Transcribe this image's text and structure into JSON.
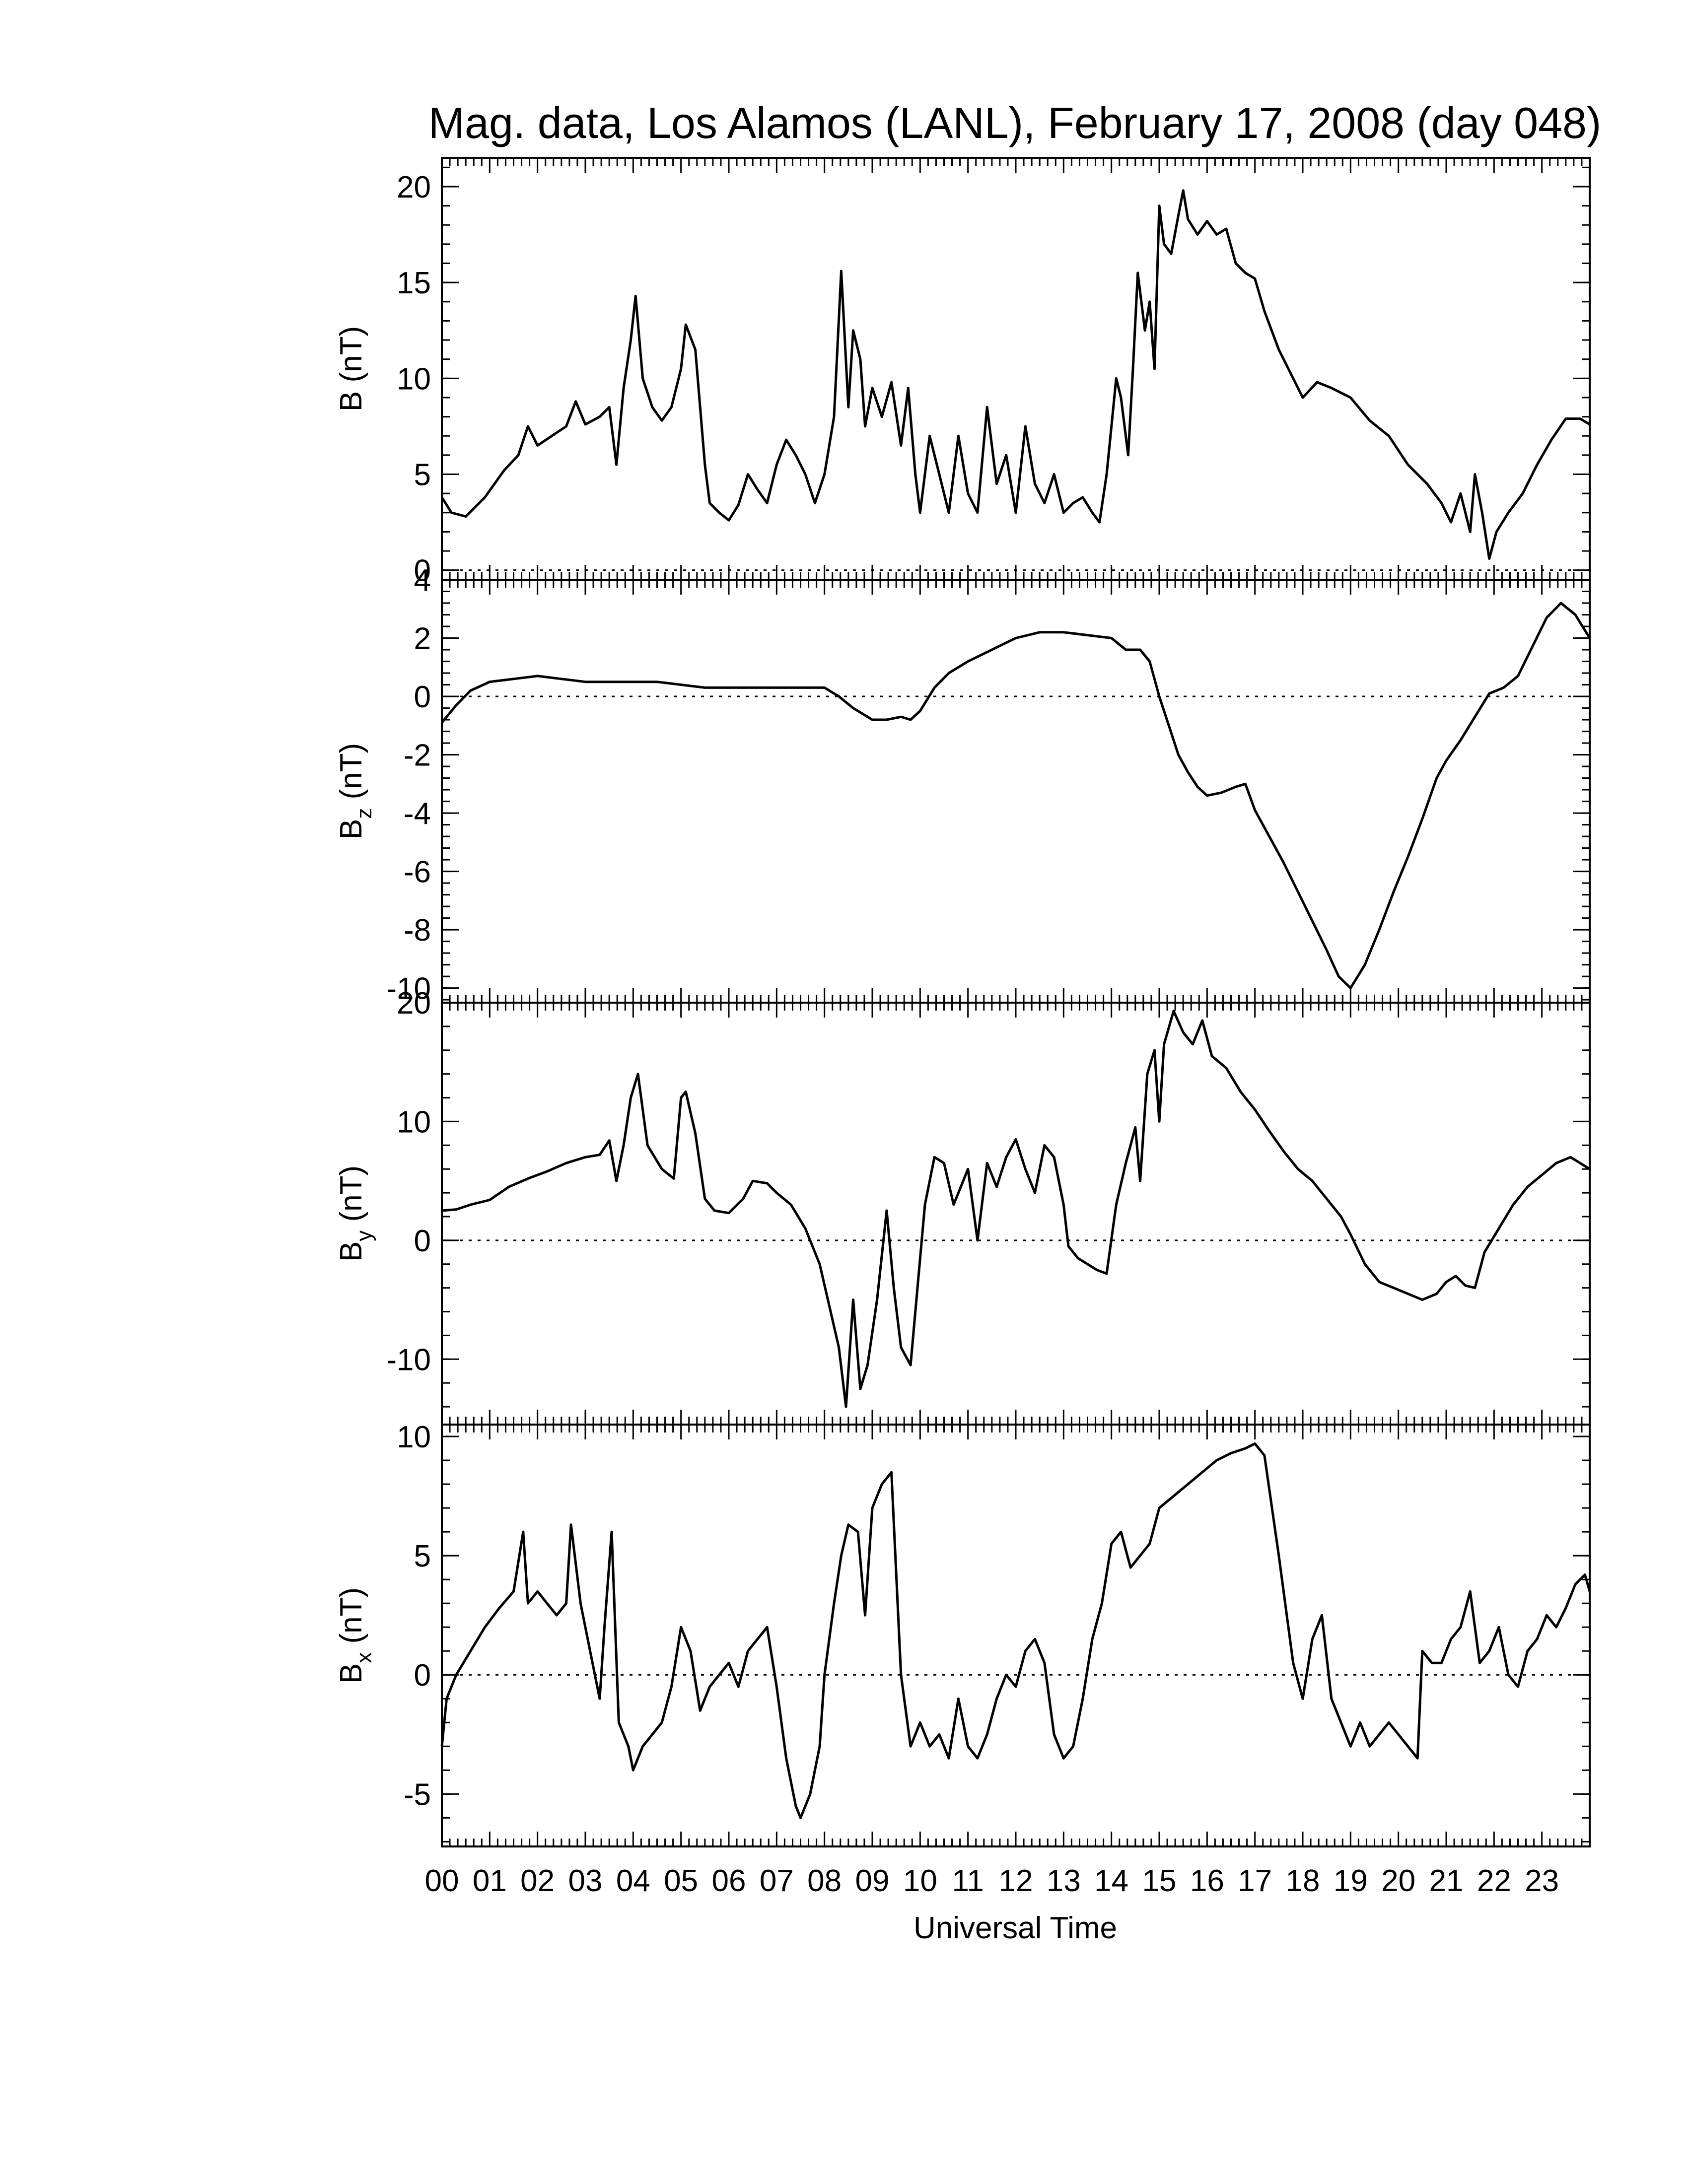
{
  "chart_data": {
    "type": "line",
    "title": "Mag. data, Los Alamos (LANL), February 17, 2008 (day 048)",
    "xlabel": "Universal Time",
    "xlim": [
      0,
      24
    ],
    "x_tick_labels": [
      "00",
      "01",
      "02",
      "03",
      "04",
      "05",
      "06",
      "07",
      "08",
      "09",
      "10",
      "11",
      "12",
      "13",
      "14",
      "15",
      "16",
      "17",
      "18",
      "19",
      "20",
      "21",
      "22",
      "23"
    ],
    "grid": false,
    "zero_line": "dotted",
    "line_color": "#000000",
    "panels": [
      {
        "key": "B",
        "ylabel_main": "B",
        "ylabel_sub": "",
        "ylabel_unit": "(nT)",
        "ylim": [
          -0.5,
          21.5
        ],
        "yticks": [
          0,
          5,
          10,
          15,
          20
        ],
        "zero_line": true,
        "series": [
          {
            "x": [
              0,
              0.2,
              0.5,
              0.9,
              1.3,
              1.6,
              1.8,
              2.0,
              2.3,
              2.6,
              2.8,
              3.0,
              3.3,
              3.5,
              3.65,
              3.8,
              3.95,
              4.05,
              4.2,
              4.4,
              4.6,
              4.8,
              5.0,
              5.1,
              5.3,
              5.5,
              5.6,
              5.8,
              6.0,
              6.2,
              6.4,
              6.6,
              6.8,
              7.0,
              7.2,
              7.4,
              7.6,
              7.8,
              8.0,
              8.2,
              8.35,
              8.5,
              8.6,
              8.75,
              8.85,
              9.0,
              9.2,
              9.4,
              9.6,
              9.75,
              9.9,
              10.0,
              10.2,
              10.4,
              10.6,
              10.8,
              11.0,
              11.2,
              11.4,
              11.6,
              11.8,
              12.0,
              12.2,
              12.4,
              12.6,
              12.8,
              13.0,
              13.2,
              13.4,
              13.6,
              13.75,
              13.9,
              14.0,
              14.1,
              14.2,
              14.35,
              14.45,
              14.55,
              14.7,
              14.8,
              14.9,
              15.0,
              15.1,
              15.25,
              15.4,
              15.5,
              15.6,
              15.8,
              16.0,
              16.2,
              16.4,
              16.6,
              16.8,
              17.0,
              17.2,
              17.5,
              17.8,
              18.0,
              18.3,
              18.6,
              19.0,
              19.4,
              19.8,
              20.2,
              20.6,
              20.9,
              21.1,
              21.3,
              21.5,
              21.6,
              21.75,
              21.9,
              22.05,
              22.3,
              22.6,
              22.9,
              23.2,
              23.5,
              23.8,
              24.0
            ],
            "y": [
              3.8,
              3.0,
              2.8,
              3.8,
              5.2,
              6.0,
              7.5,
              6.5,
              7.0,
              7.5,
              8.8,
              7.6,
              8.0,
              8.5,
              5.5,
              9.5,
              12.0,
              14.3,
              10.0,
              8.5,
              7.8,
              8.5,
              10.5,
              12.8,
              11.5,
              5.5,
              3.5,
              3.0,
              2.6,
              3.4,
              5.0,
              4.2,
              3.5,
              5.5,
              6.8,
              6.0,
              5.0,
              3.5,
              5.0,
              8.0,
              15.6,
              8.5,
              12.5,
              11.0,
              7.5,
              9.5,
              8.0,
              9.8,
              6.5,
              9.5,
              5.0,
              3.0,
              7.0,
              5.0,
              3.0,
              7.0,
              4.0,
              3.0,
              8.5,
              4.5,
              6.0,
              3.0,
              7.5,
              4.5,
              3.5,
              5.0,
              3.0,
              3.5,
              3.8,
              3.0,
              2.5,
              5.0,
              7.5,
              10.0,
              9.0,
              6.0,
              10.5,
              15.5,
              12.5,
              14.0,
              10.5,
              19.0,
              17.0,
              16.5,
              18.5,
              19.8,
              18.3,
              17.5,
              18.2,
              17.5,
              17.8,
              16.0,
              15.5,
              15.2,
              13.5,
              11.5,
              10.0,
              9.0,
              9.8,
              9.5,
              9.0,
              7.8,
              7.0,
              5.5,
              4.5,
              3.5,
              2.5,
              4.0,
              2.0,
              5.0,
              3.0,
              0.6,
              2.0,
              3.0,
              4.0,
              5.5,
              6.8,
              7.9,
              7.9,
              7.6
            ]
          }
        ]
      },
      {
        "key": "Bz",
        "ylabel_main": "B",
        "ylabel_sub": "z",
        "ylabel_unit": "(nT)",
        "ylim": [
          -10.5,
          4
        ],
        "yticks": [
          -10,
          -8,
          -6,
          -4,
          -2,
          0,
          2,
          4
        ],
        "zero_line": true,
        "series": [
          {
            "x": [
              0,
              0.3,
              0.6,
              1.0,
              1.5,
              2.0,
              2.5,
              3.0,
              3.5,
              4.0,
              4.5,
              5.0,
              5.5,
              6.0,
              6.5,
              7.0,
              7.5,
              8.0,
              8.3,
              8.6,
              9.0,
              9.3,
              9.6,
              9.8,
              10.0,
              10.3,
              10.6,
              11.0,
              11.5,
              12.0,
              12.5,
              13.0,
              13.5,
              14.0,
              14.3,
              14.6,
              14.8,
              15.0,
              15.2,
              15.4,
              15.6,
              15.8,
              16.0,
              16.3,
              16.6,
              16.8,
              17.0,
              17.3,
              17.6,
              17.9,
              18.2,
              18.5,
              18.75,
              19.0,
              19.3,
              19.6,
              19.9,
              20.2,
              20.5,
              20.8,
              21.0,
              21.3,
              21.6,
              21.9,
              22.2,
              22.5,
              22.8,
              23.1,
              23.4,
              23.7,
              24.0
            ],
            "y": [
              -0.9,
              -0.3,
              0.2,
              0.5,
              0.6,
              0.7,
              0.6,
              0.5,
              0.5,
              0.5,
              0.5,
              0.4,
              0.3,
              0.3,
              0.3,
              0.3,
              0.3,
              0.3,
              0.0,
              -0.4,
              -0.8,
              -0.8,
              -0.7,
              -0.8,
              -0.5,
              0.3,
              0.8,
              1.2,
              1.6,
              2.0,
              2.2,
              2.2,
              2.1,
              2.0,
              1.6,
              1.6,
              1.2,
              0.0,
              -1.0,
              -2.0,
              -2.6,
              -3.1,
              -3.4,
              -3.3,
              -3.1,
              -3.0,
              -3.9,
              -4.8,
              -5.7,
              -6.7,
              -7.7,
              -8.7,
              -9.6,
              -10.0,
              -9.2,
              -8.0,
              -6.7,
              -5.5,
              -4.2,
              -2.8,
              -2.2,
              -1.5,
              -0.7,
              0.1,
              0.3,
              0.7,
              1.7,
              2.7,
              3.2,
              2.8,
              2.0
            ]
          }
        ]
      },
      {
        "key": "By",
        "ylabel_main": "B",
        "ylabel_sub": "y",
        "ylabel_unit": "(nT)",
        "ylim": [
          -15.5,
          20
        ],
        "yticks": [
          -10,
          0,
          10,
          20
        ],
        "zero_line": true,
        "series": [
          {
            "x": [
              0,
              0.3,
              0.6,
              1.0,
              1.4,
              1.8,
              2.2,
              2.6,
              3.0,
              3.3,
              3.5,
              3.65,
              3.8,
              3.95,
              4.1,
              4.3,
              4.6,
              4.85,
              5.0,
              5.1,
              5.3,
              5.5,
              5.7,
              6.0,
              6.3,
              6.5,
              6.8,
              7.0,
              7.3,
              7.6,
              7.9,
              8.1,
              8.3,
              8.45,
              8.6,
              8.75,
              8.9,
              9.1,
              9.3,
              9.45,
              9.6,
              9.8,
              9.9,
              10.1,
              10.3,
              10.5,
              10.7,
              11.0,
              11.2,
              11.4,
              11.6,
              11.8,
              12.0,
              12.2,
              12.4,
              12.6,
              12.8,
              13.0,
              13.1,
              13.3,
              13.5,
              13.7,
              13.9,
              14.1,
              14.3,
              14.5,
              14.6,
              14.75,
              14.9,
              15.0,
              15.1,
              15.3,
              15.5,
              15.7,
              15.9,
              16.1,
              16.4,
              16.7,
              17.0,
              17.3,
              17.6,
              17.9,
              18.2,
              18.5,
              18.8,
              19.0,
              19.3,
              19.6,
              19.9,
              20.2,
              20.5,
              20.8,
              21.0,
              21.2,
              21.4,
              21.6,
              21.8,
              22.1,
              22.4,
              22.7,
              23.0,
              23.3,
              23.6,
              24.0
            ],
            "y": [
              2.5,
              2.6,
              3.0,
              3.4,
              4.5,
              5.2,
              5.8,
              6.5,
              7.0,
              7.2,
              8.4,
              5.0,
              8.0,
              12.0,
              14.0,
              8.0,
              6.0,
              5.2,
              12.0,
              12.5,
              9.0,
              3.5,
              2.5,
              2.3,
              3.5,
              5.0,
              4.8,
              4.0,
              3.0,
              1.0,
              -2.0,
              -5.5,
              -9.0,
              -14.0,
              -5.0,
              -12.5,
              -10.5,
              -5.0,
              2.5,
              -4.0,
              -9.0,
              -10.5,
              -6.0,
              3.0,
              7.0,
              6.5,
              3.0,
              6.0,
              0.0,
              6.5,
              4.5,
              7.0,
              8.5,
              6.0,
              4.0,
              8.0,
              7.0,
              3.0,
              -0.5,
              -1.5,
              -2.0,
              -2.5,
              -2.8,
              3.0,
              6.5,
              9.5,
              5.0,
              14.0,
              16.0,
              10.0,
              16.5,
              19.3,
              17.5,
              16.5,
              18.5,
              15.5,
              14.5,
              12.5,
              11.0,
              9.2,
              7.5,
              6.0,
              5.0,
              3.5,
              2.0,
              0.5,
              -2.0,
              -3.5,
              -4.0,
              -4.5,
              -5.0,
              -4.5,
              -3.5,
              -3.0,
              -3.8,
              -4.0,
              -1.0,
              1.0,
              3.0,
              4.5,
              5.5,
              6.5,
              7.0,
              6.0
            ]
          }
        ]
      },
      {
        "key": "Bx",
        "ylabel_main": "B",
        "ylabel_sub": "x",
        "ylabel_unit": "(nT)",
        "ylim": [
          -7.2,
          10.5
        ],
        "yticks": [
          -5,
          0,
          5,
          10
        ],
        "zero_line": true,
        "series": [
          {
            "x": [
              0,
              0.1,
              0.3,
              0.6,
              0.9,
              1.2,
              1.5,
              1.7,
              1.8,
              2.0,
              2.2,
              2.4,
              2.6,
              2.7,
              2.9,
              3.1,
              3.3,
              3.4,
              3.55,
              3.7,
              3.9,
              4.0,
              4.2,
              4.4,
              4.6,
              4.8,
              5.0,
              5.2,
              5.4,
              5.6,
              5.8,
              6.0,
              6.2,
              6.4,
              6.6,
              6.8,
              7.0,
              7.2,
              7.4,
              7.5,
              7.7,
              7.9,
              8.0,
              8.2,
              8.35,
              8.5,
              8.7,
              8.85,
              9.0,
              9.2,
              9.4,
              9.6,
              9.8,
              10.0,
              10.2,
              10.4,
              10.6,
              10.8,
              11.0,
              11.2,
              11.4,
              11.6,
              11.8,
              12.0,
              12.2,
              12.4,
              12.6,
              12.8,
              13.0,
              13.2,
              13.4,
              13.6,
              13.8,
              14.0,
              14.2,
              14.4,
              14.6,
              14.8,
              15.0,
              15.3,
              15.6,
              15.9,
              16.2,
              16.5,
              16.8,
              17.0,
              17.2,
              17.5,
              17.8,
              18.0,
              18.2,
              18.4,
              18.6,
              18.8,
              19.0,
              19.2,
              19.4,
              19.6,
              19.8,
              20.0,
              20.2,
              20.4,
              20.5,
              20.7,
              20.9,
              21.1,
              21.3,
              21.5,
              21.7,
              21.9,
              22.1,
              22.3,
              22.5,
              22.7,
              22.9,
              23.1,
              23.3,
              23.5,
              23.7,
              23.9,
              24.0
            ],
            "y": [
              -3.0,
              -1.0,
              0.0,
              1.0,
              2.0,
              2.8,
              3.5,
              6.0,
              3.0,
              3.5,
              3.0,
              2.5,
              3.0,
              6.3,
              3.0,
              1.0,
              -1.0,
              2.0,
              6.0,
              -2.0,
              -3.0,
              -4.0,
              -3.0,
              -2.5,
              -2.0,
              -0.5,
              2.0,
              1.0,
              -1.5,
              -0.5,
              0.0,
              0.5,
              -0.5,
              1.0,
              1.5,
              2.0,
              -0.5,
              -3.5,
              -5.5,
              -6.0,
              -5.0,
              -3.0,
              0.0,
              3.0,
              5.0,
              6.3,
              6.0,
              2.5,
              7.0,
              8.0,
              8.5,
              0.0,
              -3.0,
              -2.0,
              -3.0,
              -2.5,
              -3.5,
              -1.0,
              -3.0,
              -3.5,
              -2.5,
              -1.0,
              0.0,
              -0.5,
              1.0,
              1.5,
              0.5,
              -2.5,
              -3.5,
              -3.0,
              -1.0,
              1.5,
              3.0,
              5.5,
              6.0,
              4.5,
              5.0,
              5.5,
              7.0,
              7.5,
              8.0,
              8.5,
              9.0,
              9.3,
              9.5,
              9.7,
              9.2,
              5.0,
              0.5,
              -1.0,
              1.5,
              2.5,
              -1.0,
              -2.0,
              -3.0,
              -2.0,
              -3.0,
              -2.5,
              -2.0,
              -2.5,
              -3.0,
              -3.5,
              1.0,
              0.5,
              0.5,
              1.5,
              2.0,
              3.5,
              0.5,
              1.0,
              2.0,
              0.0,
              -0.5,
              1.0,
              1.5,
              2.5,
              2.0,
              2.8,
              3.8,
              4.2,
              3.5
            ]
          }
        ]
      }
    ]
  }
}
